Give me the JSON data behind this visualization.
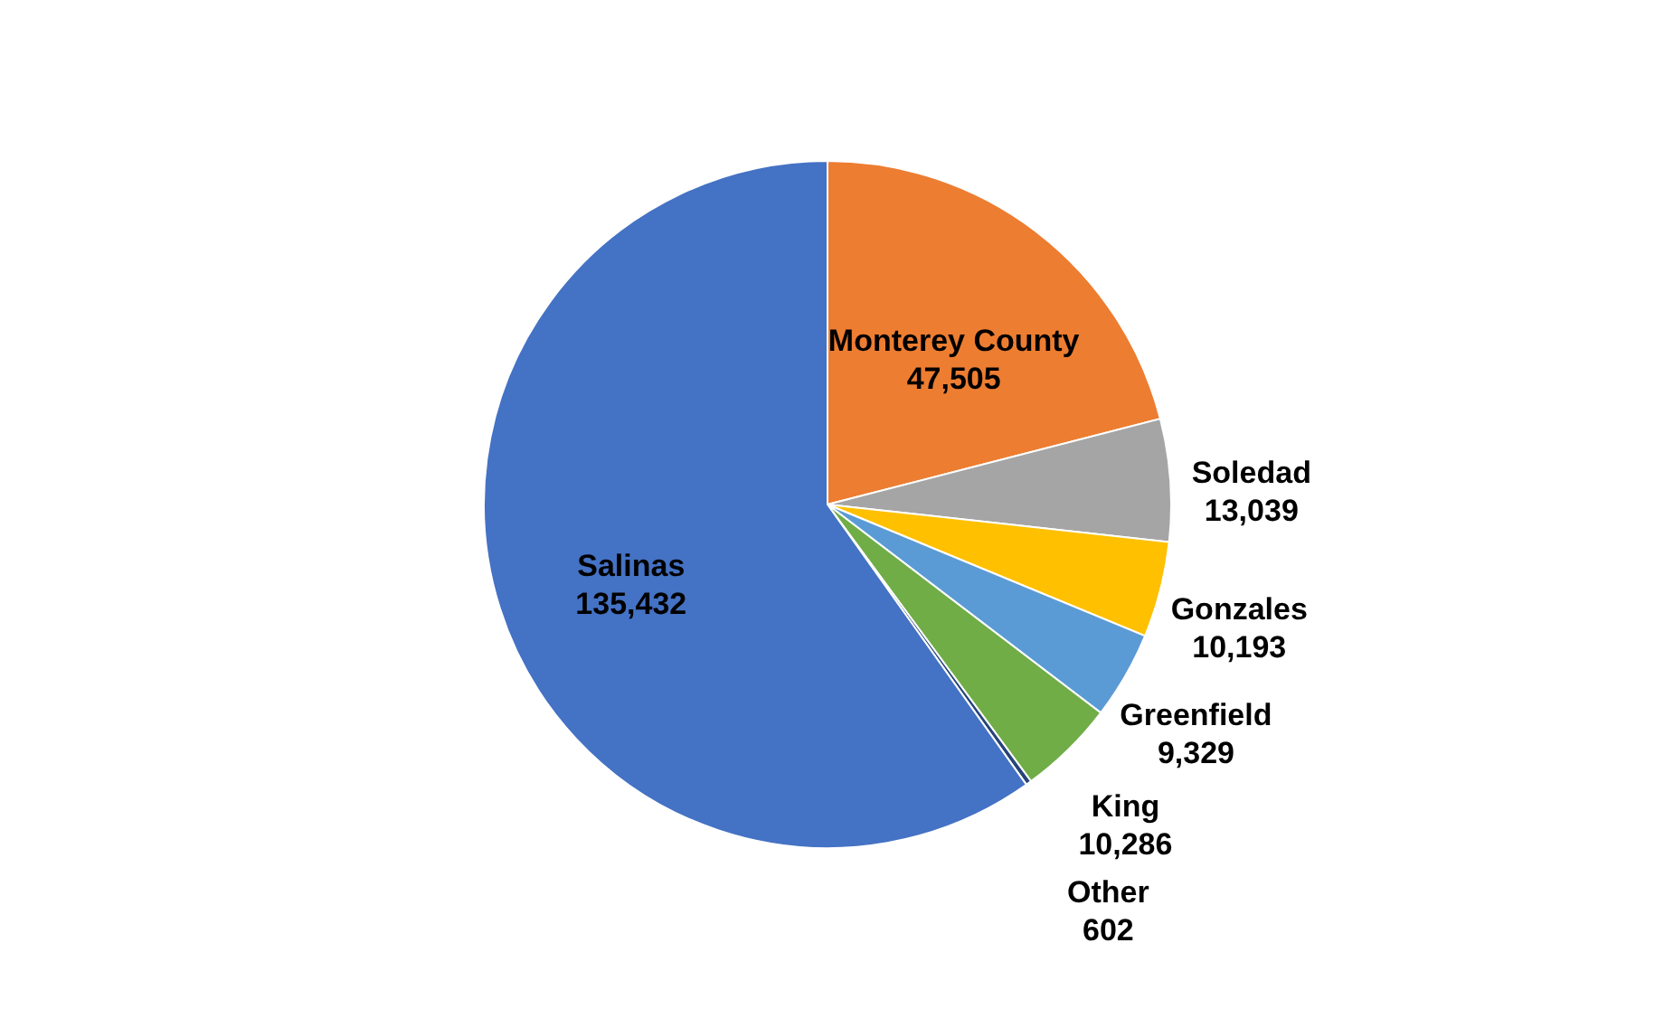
{
  "chart_data": {
    "type": "pie",
    "categories": [
      "Monterey County",
      "Soledad",
      "Gonzales",
      "Greenfield",
      "King",
      "Other",
      "Salinas"
    ],
    "values": [
      47505,
      13039,
      10193,
      9329,
      10286,
      602,
      135432
    ],
    "value_labels": [
      "47,505",
      "13,039",
      "10,193",
      "9,329",
      "10,286",
      "602",
      "135,432"
    ],
    "colors": [
      "#ed7d31",
      "#a5a5a5",
      "#ffc000",
      "#5b9bd5",
      "#70ad47",
      "#264478",
      "#4472c4"
    ]
  }
}
